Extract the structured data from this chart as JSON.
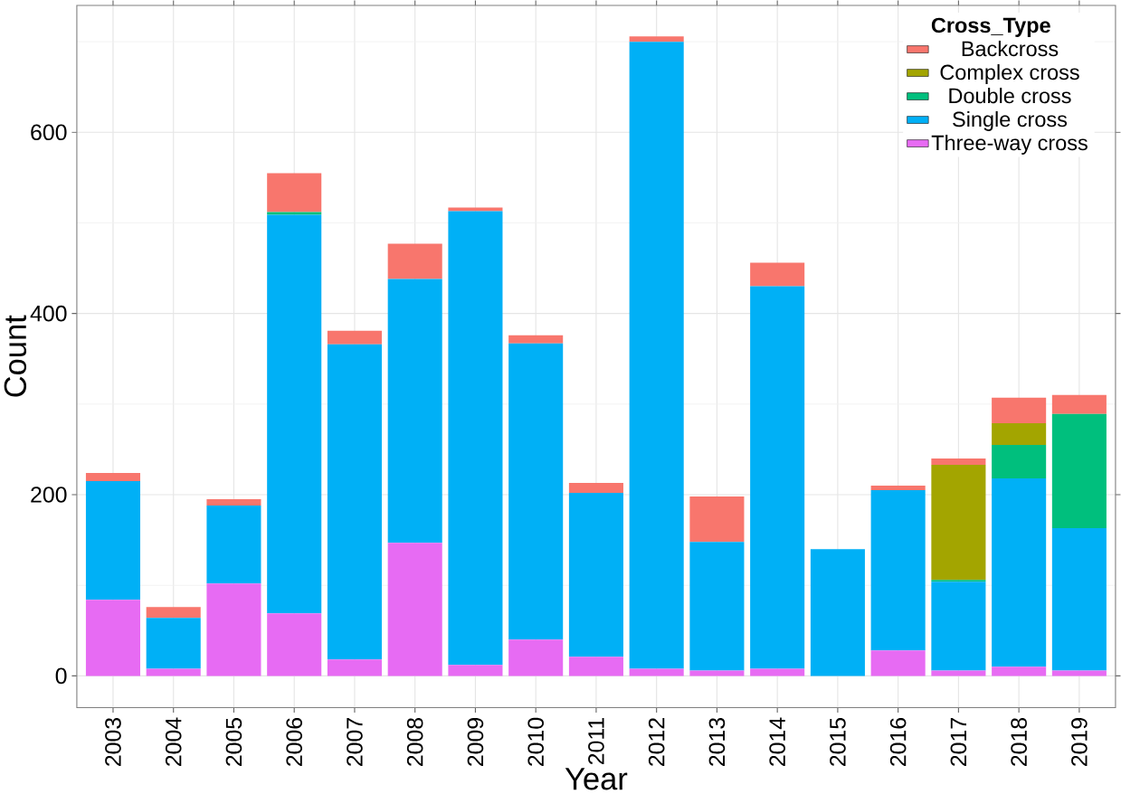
{
  "chart_data": {
    "type": "bar",
    "stacked": true,
    "xlabel": "Year",
    "ylabel": "Count",
    "legend_title": "Cross_Type",
    "categories": [
      "2003",
      "2004",
      "2005",
      "2006",
      "2007",
      "2008",
      "2009",
      "2010",
      "2011",
      "2012",
      "2013",
      "2014",
      "2015",
      "2016",
      "2017",
      "2018",
      "2019"
    ],
    "series": [
      {
        "name": "Three-way cross",
        "color": "#e76bf3",
        "values": [
          84,
          8,
          102,
          69,
          18,
          147,
          12,
          40,
          21,
          8,
          6,
          8,
          0,
          28,
          6,
          10,
          6
        ]
      },
      {
        "name": "Single cross",
        "color": "#00b0f6",
        "values": [
          131,
          56,
          86,
          440,
          348,
          291,
          501,
          327,
          181,
          692,
          142,
          422,
          140,
          177,
          98,
          208,
          157
        ]
      },
      {
        "name": "Double cross",
        "color": "#00bf7d",
        "values": [
          0,
          0,
          0,
          3,
          0,
          0,
          0,
          0,
          0,
          0,
          0,
          0,
          0,
          0,
          2,
          37,
          126
        ]
      },
      {
        "name": "Complex cross",
        "color": "#a3a500",
        "values": [
          0,
          0,
          0,
          0,
          0,
          0,
          0,
          0,
          0,
          0,
          0,
          0,
          0,
          0,
          127,
          24,
          0
        ]
      },
      {
        "name": "Backcross",
        "color": "#f8766d",
        "values": [
          9,
          12,
          7,
          43,
          15,
          39,
          4,
          9,
          11,
          6,
          50,
          26,
          0,
          5,
          7,
          28,
          21
        ]
      }
    ],
    "ylim": [
      -35,
      740
    ],
    "yticks": [
      0,
      200,
      400,
      600
    ],
    "grid": true,
    "legend": "top right"
  }
}
